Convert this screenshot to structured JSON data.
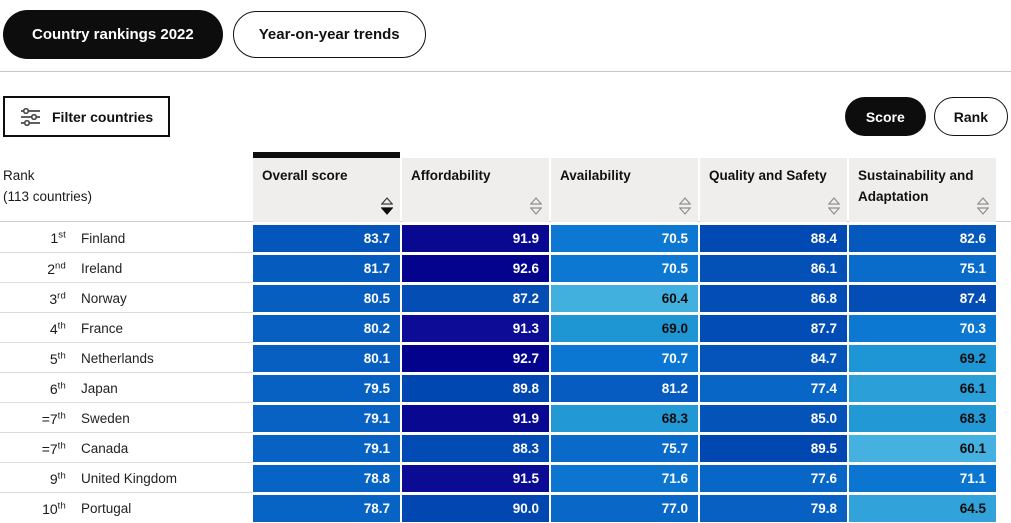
{
  "tabs": [
    {
      "label": "Country rankings 2022",
      "active": true
    },
    {
      "label": "Year-on-year trends",
      "active": false
    }
  ],
  "toolbar": {
    "filter_label": "Filter countries",
    "view_toggle": [
      {
        "label": "Score",
        "active": true
      },
      {
        "label": "Rank",
        "active": false
      }
    ]
  },
  "table": {
    "rank_header_line1": "Rank",
    "rank_header_line2": "(113 countries)",
    "columns": [
      "Overall score",
      "Affordability",
      "Availability",
      "Quality and Safety",
      "Sustainability and Adaptation"
    ],
    "sort": {
      "column_index": 0,
      "direction": "desc"
    },
    "rows": [
      {
        "rank": "1",
        "suffix": "st",
        "country": "Finland",
        "scores": [
          83.7,
          91.9,
          70.5,
          88.4,
          82.6
        ]
      },
      {
        "rank": "2",
        "suffix": "nd",
        "country": "Ireland",
        "scores": [
          81.7,
          92.6,
          70.5,
          86.1,
          75.1
        ]
      },
      {
        "rank": "3",
        "suffix": "rd",
        "country": "Norway",
        "scores": [
          80.5,
          87.2,
          60.4,
          86.8,
          87.4
        ]
      },
      {
        "rank": "4",
        "suffix": "th",
        "country": "France",
        "scores": [
          80.2,
          91.3,
          69.0,
          87.7,
          70.3
        ]
      },
      {
        "rank": "5",
        "suffix": "th",
        "country": "Netherlands",
        "scores": [
          80.1,
          92.7,
          70.7,
          84.7,
          69.2
        ]
      },
      {
        "rank": "6",
        "suffix": "th",
        "country": "Japan",
        "scores": [
          79.5,
          89.8,
          81.2,
          77.4,
          66.1
        ]
      },
      {
        "rank": "=7",
        "suffix": "th",
        "country": "Sweden",
        "scores": [
          79.1,
          91.9,
          68.3,
          85.0,
          68.3
        ]
      },
      {
        "rank": "=7",
        "suffix": "th",
        "country": "Canada",
        "scores": [
          79.1,
          88.3,
          75.7,
          89.5,
          60.1
        ]
      },
      {
        "rank": "9",
        "suffix": "th",
        "country": "United Kingdom",
        "scores": [
          78.8,
          91.5,
          71.6,
          77.6,
          71.1
        ]
      },
      {
        "rank": "10",
        "suffix": "th",
        "country": "Portugal",
        "scores": [
          78.7,
          90.0,
          77.0,
          79.8,
          64.5
        ]
      }
    ]
  },
  "colors": {
    "active_control_bg": "#0d0d0d",
    "header_cell_bg": "#f0eeed",
    "sort_active_bar": "#0d0d0d",
    "score_scale_stops": [
      [
        60.0,
        "#44b1e0"
      ],
      [
        69.9,
        "#1b93d3"
      ],
      [
        70.0,
        "#0c79d3"
      ],
      [
        90.4,
        "#0145b0"
      ],
      [
        90.5,
        "#12129b"
      ],
      [
        93.0,
        "#00008a"
      ]
    ],
    "white_text_min_score": 70,
    "cell_text_light": "#ffffff",
    "cell_text_dark": "#0d0d0d"
  }
}
